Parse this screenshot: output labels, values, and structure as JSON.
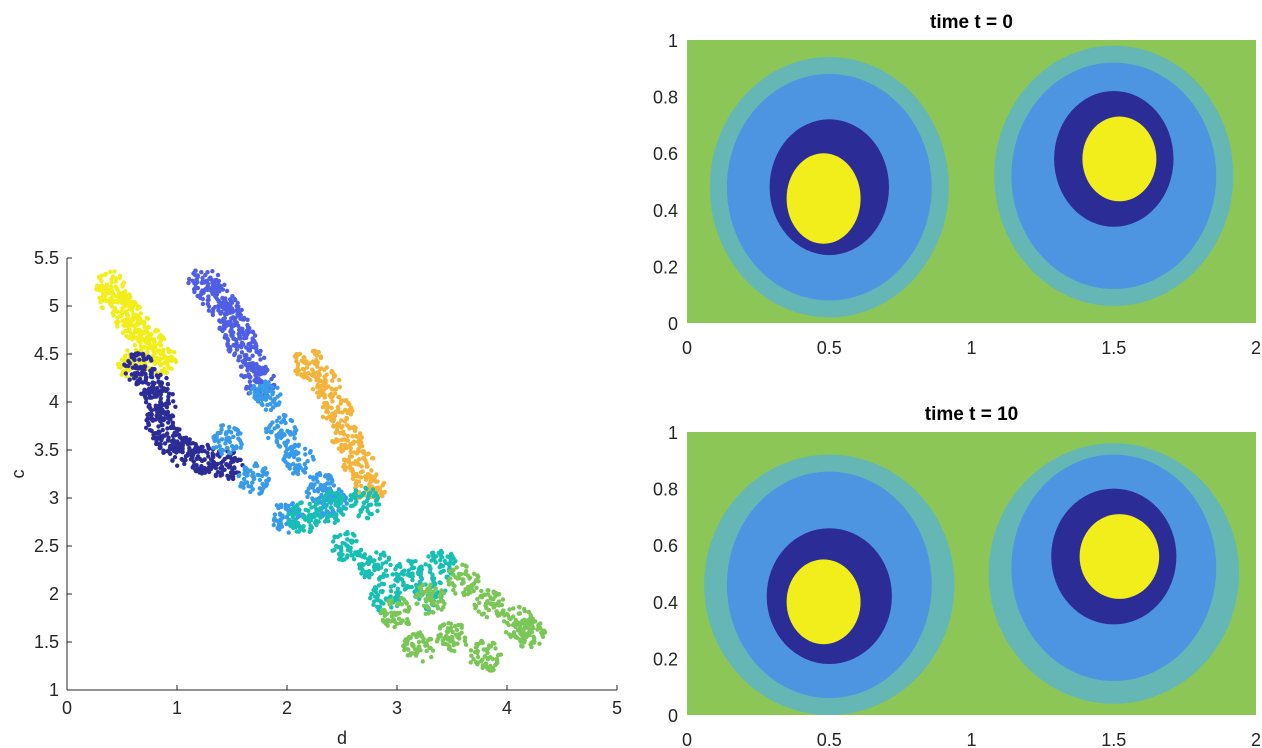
{
  "chart_data": [
    {
      "type": "scatter",
      "title": "",
      "xlabel": "d",
      "ylabel": "c",
      "xlim": [
        0,
        5
      ],
      "ylim": [
        1,
        5.5
      ],
      "xticks": [
        "0",
        "1",
        "2",
        "3",
        "4",
        "5"
      ],
      "yticks": [
        "1",
        "1.5",
        "2",
        "2.5",
        "3",
        "3.5",
        "4",
        "4.5",
        "5",
        "5.5"
      ],
      "grid": false,
      "legend": "none",
      "series": [
        {
          "color": "#f2ee1b",
          "points": [
            [
              0.4,
              5.2
            ],
            [
              0.45,
              5.05
            ],
            [
              0.55,
              4.9
            ],
            [
              0.65,
              4.75
            ],
            [
              0.75,
              4.6
            ],
            [
              0.85,
              4.45
            ],
            [
              0.6,
              4.4
            ]
          ]
        },
        {
          "color": "#2c2c97",
          "points": [
            [
              0.65,
              4.35
            ],
            [
              0.78,
              4.2
            ],
            [
              0.85,
              4.0
            ],
            [
              0.85,
              3.8
            ],
            [
              0.92,
              3.6
            ],
            [
              1.05,
              3.48
            ],
            [
              1.25,
              3.4
            ],
            [
              1.45,
              3.35
            ]
          ]
        },
        {
          "color": "#4f5fe4",
          "points": [
            [
              1.25,
              5.25
            ],
            [
              1.35,
              5.1
            ],
            [
              1.45,
              4.95
            ],
            [
              1.52,
              4.8
            ],
            [
              1.6,
              4.6
            ],
            [
              1.68,
              4.4
            ],
            [
              1.75,
              4.2
            ]
          ]
        },
        {
          "color": "#379bea",
          "points": [
            [
              1.45,
              3.6
            ],
            [
              1.8,
              4.05
            ],
            [
              1.95,
              3.7
            ],
            [
              2.1,
              3.4
            ],
            [
              2.3,
              3.1
            ],
            [
              2.4,
              2.95
            ],
            [
              1.7,
              3.2
            ],
            [
              2.0,
              2.8
            ]
          ]
        },
        {
          "color": "#f4b33a",
          "points": [
            [
              2.2,
              4.4
            ],
            [
              2.35,
              4.2
            ],
            [
              2.45,
              3.9
            ],
            [
              2.55,
              3.6
            ],
            [
              2.65,
              3.35
            ],
            [
              2.75,
              3.1
            ]
          ]
        },
        {
          "color": "#17bfb3",
          "points": [
            [
              2.15,
              2.8
            ],
            [
              2.4,
              2.9
            ],
            [
              2.7,
              2.95
            ],
            [
              2.55,
              2.5
            ],
            [
              2.8,
              2.3
            ],
            [
              3.1,
              2.2
            ],
            [
              3.3,
              2.0
            ],
            [
              2.9,
              1.95
            ],
            [
              3.4,
              2.3
            ]
          ]
        },
        {
          "color": "#7ac656",
          "points": [
            [
              3.0,
              1.8
            ],
            [
              3.3,
              1.95
            ],
            [
              3.6,
              2.15
            ],
            [
              3.85,
              1.9
            ],
            [
              4.1,
              1.7
            ],
            [
              3.5,
              1.55
            ],
            [
              3.2,
              1.45
            ],
            [
              3.8,
              1.35
            ],
            [
              4.2,
              1.6
            ]
          ]
        }
      ]
    },
    {
      "type": "heatmap",
      "title": "time t = 0",
      "xlim": [
        0,
        2
      ],
      "ylim": [
        0,
        1
      ],
      "xticks": [
        "0",
        "0.5",
        "1",
        "1.5",
        "2"
      ],
      "yticks": [
        "0",
        "0.2",
        "0.4",
        "0.6",
        "0.8",
        "1"
      ],
      "background_color": "#8cc657",
      "regions": [
        {
          "color": "#64b7b5",
          "cx": 0.5,
          "cy": 0.48,
          "rx": 0.42,
          "ry": 0.46
        },
        {
          "color": "#4d95e1",
          "cx": 0.5,
          "cy": 0.48,
          "rx": 0.36,
          "ry": 0.4
        },
        {
          "color": "#2c2c97",
          "cx": 0.5,
          "cy": 0.48,
          "rx": 0.21,
          "ry": 0.24
        },
        {
          "color": "#f2ee1b",
          "cx": 0.48,
          "cy": 0.44,
          "rx": 0.13,
          "ry": 0.16
        },
        {
          "color": "#64b7b5",
          "cx": 1.5,
          "cy": 0.52,
          "rx": 0.42,
          "ry": 0.46
        },
        {
          "color": "#4d95e1",
          "cx": 1.5,
          "cy": 0.52,
          "rx": 0.36,
          "ry": 0.4
        },
        {
          "color": "#2c2c97",
          "cx": 1.5,
          "cy": 0.58,
          "rx": 0.21,
          "ry": 0.24
        },
        {
          "color": "#f2ee1b",
          "cx": 1.52,
          "cy": 0.58,
          "rx": 0.13,
          "ry": 0.15
        }
      ]
    },
    {
      "type": "heatmap",
      "title": "time t = 10",
      "xlim": [
        0,
        2
      ],
      "ylim": [
        0,
        1
      ],
      "xticks": [
        "0",
        "0.5",
        "1",
        "1.5",
        "2"
      ],
      "yticks": [
        "0",
        "0.2",
        "0.4",
        "0.6",
        "0.8",
        "1"
      ],
      "background_color": "#8cc657",
      "regions": [
        {
          "color": "#64b7b5",
          "cx": 0.5,
          "cy": 0.46,
          "rx": 0.44,
          "ry": 0.46
        },
        {
          "color": "#4d95e1",
          "cx": 0.5,
          "cy": 0.46,
          "rx": 0.36,
          "ry": 0.4
        },
        {
          "color": "#2c2c97",
          "cx": 0.5,
          "cy": 0.42,
          "rx": 0.22,
          "ry": 0.24
        },
        {
          "color": "#f2ee1b",
          "cx": 0.48,
          "cy": 0.4,
          "rx": 0.13,
          "ry": 0.15
        },
        {
          "color": "#64b7b5",
          "cx": 1.5,
          "cy": 0.5,
          "rx": 0.44,
          "ry": 0.46
        },
        {
          "color": "#4d95e1",
          "cx": 1.5,
          "cy": 0.52,
          "rx": 0.36,
          "ry": 0.4
        },
        {
          "color": "#2c2c97",
          "cx": 1.5,
          "cy": 0.56,
          "rx": 0.22,
          "ry": 0.24
        },
        {
          "color": "#f2ee1b",
          "cx": 1.52,
          "cy": 0.56,
          "rx": 0.14,
          "ry": 0.15
        }
      ]
    }
  ]
}
